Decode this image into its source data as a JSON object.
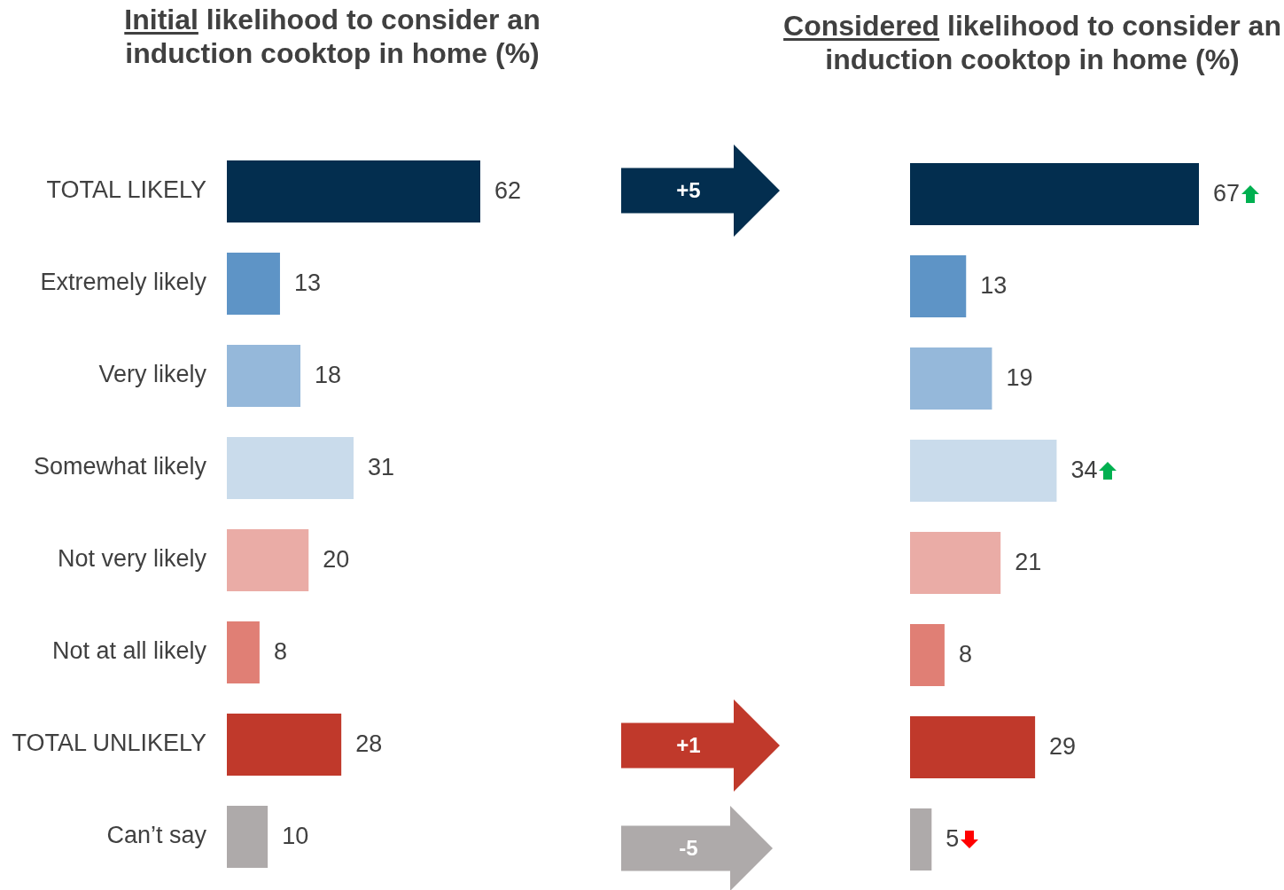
{
  "chart_data": [
    {
      "type": "bar",
      "orientation": "horizontal",
      "title": "Initial likelihood to consider an induction cooktop in home (%)",
      "categories": [
        "TOTAL LIKELY",
        "Extremely likely",
        "Very likely",
        "Somewhat likely",
        "Not very likely",
        "Not at all likely",
        "TOTAL UNLIKELY",
        "Can’t say"
      ],
      "values": [
        62,
        13,
        18,
        31,
        20,
        8,
        28,
        10
      ],
      "colors": [
        "#032e4f",
        "#5e94c6",
        "#95b8da",
        "#c9dbeb",
        "#eaaca6",
        "#e07f75",
        "#c0392b",
        "#aeaaaa"
      ],
      "data_labels": true,
      "tick_labels": "y"
    },
    {
      "type": "bar",
      "orientation": "horizontal",
      "title": "Considered likelihood to consider an induction cooktop in home (%)",
      "categories": [
        null,
        null,
        null,
        null,
        null,
        null,
        null,
        null
      ],
      "values": [
        67,
        13,
        19,
        34,
        21,
        8,
        29,
        5
      ],
      "colors": [
        "#032e4f",
        "#5e94c6",
        "#95b8da",
        "#c9dbeb",
        "#eaaca6",
        "#e07f75",
        "#c0392b",
        "#aeaaaa"
      ],
      "data_labels": true,
      "tick_labels": false,
      "annotations": [
        "+5",
        "+1",
        "-5"
      ]
    }
  ]
}
